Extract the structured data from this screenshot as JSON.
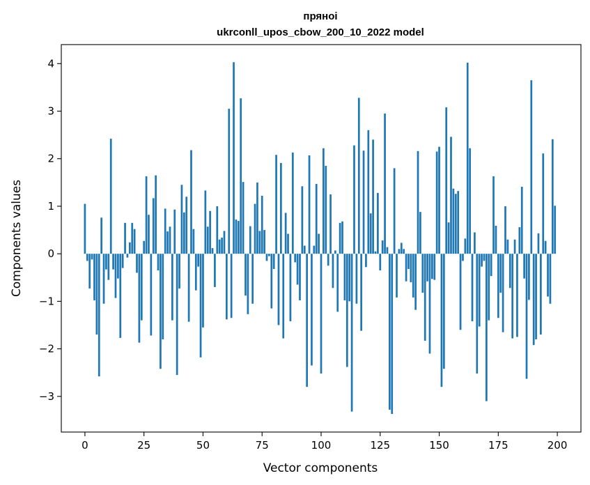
{
  "chart_data": {
    "type": "bar",
    "title_line1": "пряноі",
    "title_line2": "ukrconll_upos_cbow_200_10_2022 model",
    "xlabel": "Vector components",
    "ylabel": "Components values",
    "xlim": [
      -10,
      210
    ],
    "ylim": [
      -3.75,
      4.4
    ],
    "xticks": [
      0,
      25,
      50,
      75,
      100,
      125,
      150,
      175,
      200
    ],
    "yticks": [
      -3,
      -2,
      -1,
      0,
      1,
      2,
      3,
      4
    ],
    "bar_color": "#1f77b4",
    "grid": false,
    "x": [
      0,
      1,
      2,
      3,
      4,
      5,
      6,
      7,
      8,
      9,
      10,
      11,
      12,
      13,
      14,
      15,
      16,
      17,
      18,
      19,
      20,
      21,
      22,
      23,
      24,
      25,
      26,
      27,
      28,
      29,
      30,
      31,
      32,
      33,
      34,
      35,
      36,
      37,
      38,
      39,
      40,
      41,
      42,
      43,
      44,
      45,
      46,
      47,
      48,
      49,
      50,
      51,
      52,
      53,
      54,
      55,
      56,
      57,
      58,
      59,
      60,
      61,
      62,
      63,
      64,
      65,
      66,
      67,
      68,
      69,
      70,
      71,
      72,
      73,
      74,
      75,
      76,
      77,
      78,
      79,
      80,
      81,
      82,
      83,
      84,
      85,
      86,
      87,
      88,
      89,
      90,
      91,
      92,
      93,
      94,
      95,
      96,
      97,
      98,
      99,
      100,
      101,
      102,
      103,
      104,
      105,
      106,
      107,
      108,
      109,
      110,
      111,
      112,
      113,
      114,
      115,
      116,
      117,
      118,
      119,
      120,
      121,
      122,
      123,
      124,
      125,
      126,
      127,
      128,
      129,
      130,
      131,
      132,
      133,
      134,
      135,
      136,
      137,
      138,
      139,
      140,
      141,
      142,
      143,
      144,
      145,
      146,
      147,
      148,
      149,
      150,
      151,
      152,
      153,
      154,
      155,
      156,
      157,
      158,
      159,
      160,
      161,
      162,
      163,
      164,
      165,
      166,
      167,
      168,
      169,
      170,
      171,
      172,
      173,
      174,
      175,
      176,
      177,
      178,
      179,
      180,
      181,
      182,
      183,
      184,
      185,
      186,
      187,
      188,
      189,
      190,
      191,
      192,
      193,
      194,
      195,
      196,
      197,
      198,
      199
    ],
    "values": [
      1.05,
      -0.15,
      -0.73,
      -0.12,
      -0.98,
      -1.7,
      -2.58,
      0.76,
      -1.05,
      -0.33,
      -0.55,
      2.42,
      -0.33,
      -0.93,
      -0.52,
      -1.77,
      -0.3,
      0.65,
      -0.08,
      0.24,
      0.65,
      0.52,
      -0.4,
      -1.87,
      -1.4,
      0.27,
      1.63,
      0.82,
      -1.72,
      1.17,
      1.65,
      -0.35,
      -2.42,
      -1.8,
      0.95,
      0.47,
      0.57,
      -1.4,
      0.93,
      -2.55,
      -0.73,
      1.45,
      0.87,
      1.2,
      -1.43,
      2.18,
      0.52,
      -0.77,
      -0.27,
      -2.18,
      -1.55,
      1.33,
      0.57,
      0.9,
      0.12,
      -0.7,
      1.0,
      0.3,
      0.34,
      0.48,
      -1.38,
      3.05,
      -1.35,
      4.03,
      0.72,
      0.69,
      3.27,
      1.51,
      -0.88,
      -1.27,
      0.58,
      -1.05,
      1.05,
      1.5,
      0.48,
      1.22,
      0.5,
      -0.15,
      -0.05,
      -1.15,
      -0.32,
      2.08,
      -1.5,
      1.91,
      -1.78,
      0.86,
      0.42,
      -1.42,
      2.13,
      -0.18,
      -0.65,
      -0.98,
      1.42,
      0.17,
      -2.8,
      2.07,
      -2.35,
      0.17,
      1.47,
      0.42,
      -2.52,
      2.22,
      1.85,
      -0.25,
      1.25,
      -0.72,
      0.07,
      -1.22,
      0.65,
      0.68,
      -0.98,
      -2.38,
      -1.0,
      -3.32,
      2.28,
      -1.05,
      3.28,
      -1.62,
      2.17,
      -0.28,
      2.6,
      0.85,
      2.4,
      0.05,
      1.28,
      -0.35,
      0.28,
      2.95,
      0.14,
      -3.28,
      -3.37,
      1.8,
      -0.92,
      0.1,
      0.23,
      0.1,
      -0.58,
      -0.32,
      -0.6,
      -0.92,
      -1.18,
      2.16,
      0.88,
      -0.82,
      -1.83,
      -0.58,
      -2.1,
      -0.53,
      -0.55,
      2.15,
      2.25,
      -2.8,
      -2.42,
      3.08,
      0.66,
      2.46,
      1.37,
      1.26,
      1.32,
      -1.6,
      -0.15,
      0.32,
      4.02,
      2.22,
      -1.42,
      0.45,
      -2.52,
      -1.53,
      -0.27,
      -0.15,
      -3.1,
      -1.4,
      -0.47,
      1.63,
      0.59,
      -1.35,
      -0.82,
      -1.65,
      1.0,
      0.3,
      -0.72,
      -1.78,
      0.3,
      -1.75,
      0.56,
      1.41,
      -0.52,
      -2.63,
      -0.97,
      3.65,
      -1.92,
      -1.8,
      0.43,
      -1.7,
      2.11,
      0.27,
      -0.9,
      -1.05,
      2.41,
      1.01
    ]
  }
}
